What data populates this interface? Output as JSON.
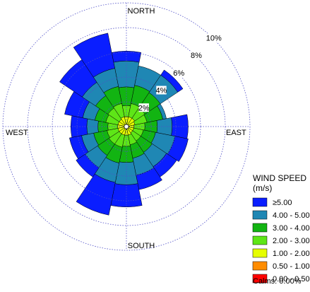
{
  "chart_data": {
    "type": "wind-rose",
    "directions": [
      "N",
      "NNE",
      "NE",
      "ENE",
      "E",
      "ESE",
      "SE",
      "SSE",
      "S",
      "SSW",
      "SW",
      "WSW",
      "W",
      "WNW",
      "NW",
      "NNW"
    ],
    "compass_labels": {
      "north": "NORTH",
      "east": "EAST",
      "south": "SOUTH",
      "west": "WEST"
    },
    "radial_ticks": [
      2,
      4,
      6,
      8,
      10
    ],
    "radial_tick_labels": [
      "2%",
      "4%",
      "6%",
      "8%",
      "10%"
    ],
    "radial_max": 10,
    "units": "percent of time",
    "legend_title_line1": "WIND SPEED",
    "legend_title_line2": "(m/s)",
    "calms_label": "Calms: 0.00%",
    "bins": [
      {
        "label": "0.00 - 0.50",
        "color": "#ff0000"
      },
      {
        "label": "0.50 - 1.00",
        "color": "#ff8c00"
      },
      {
        "label": "1.00 - 2.00",
        "color": "#e6ff00"
      },
      {
        "label": "2.00 - 3.00",
        "color": "#5ee617"
      },
      {
        "label": "3.00 - 4.00",
        "color": "#12b412"
      },
      {
        "label": "4.00 - 5.00",
        "color": "#1f87b4"
      },
      {
        "label": "≥5.00",
        "color": "#0a1eff"
      }
    ],
    "cumulative_percent": [
      [
        0,
        0,
        0.8,
        1.7,
        3.2,
        5.3,
        6.1
      ],
      [
        0,
        0,
        0.8,
        1.9,
        3.4,
        5.0,
        5.0
      ],
      [
        0,
        0,
        0.8,
        1.8,
        3.3,
        5.0,
        5.5
      ],
      [
        0,
        0,
        0.7,
        1.7,
        3.0,
        3.3,
        3.3
      ],
      [
        0,
        0,
        0.6,
        1.5,
        2.5,
        3.7,
        5.0
      ],
      [
        0,
        0,
        0.6,
        1.4,
        2.4,
        4.0,
        5.1
      ],
      [
        0,
        0,
        0.6,
        1.4,
        2.5,
        3.9,
        4.9
      ],
      [
        0,
        0,
        0.7,
        1.5,
        2.6,
        4.0,
        5.2
      ],
      [
        0,
        0,
        0.7,
        1.6,
        2.9,
        4.7,
        6.5
      ],
      [
        0,
        0,
        0.7,
        1.7,
        3.0,
        4.6,
        7.3
      ],
      [
        0,
        0,
        0.7,
        1.7,
        2.8,
        4.0,
        4.9
      ],
      [
        0,
        0,
        0.7,
        1.6,
        2.7,
        3.7,
        4.7
      ],
      [
        0,
        0,
        0.7,
        1.5,
        2.3,
        3.2,
        4.5
      ],
      [
        0,
        0,
        0.7,
        1.7,
        2.6,
        3.6,
        5.1
      ],
      [
        0,
        0,
        0.7,
        1.8,
        3.0,
        4.3,
        6.5
      ],
      [
        0,
        0,
        0.8,
        1.9,
        3.3,
        4.8,
        7.7
      ]
    ]
  }
}
